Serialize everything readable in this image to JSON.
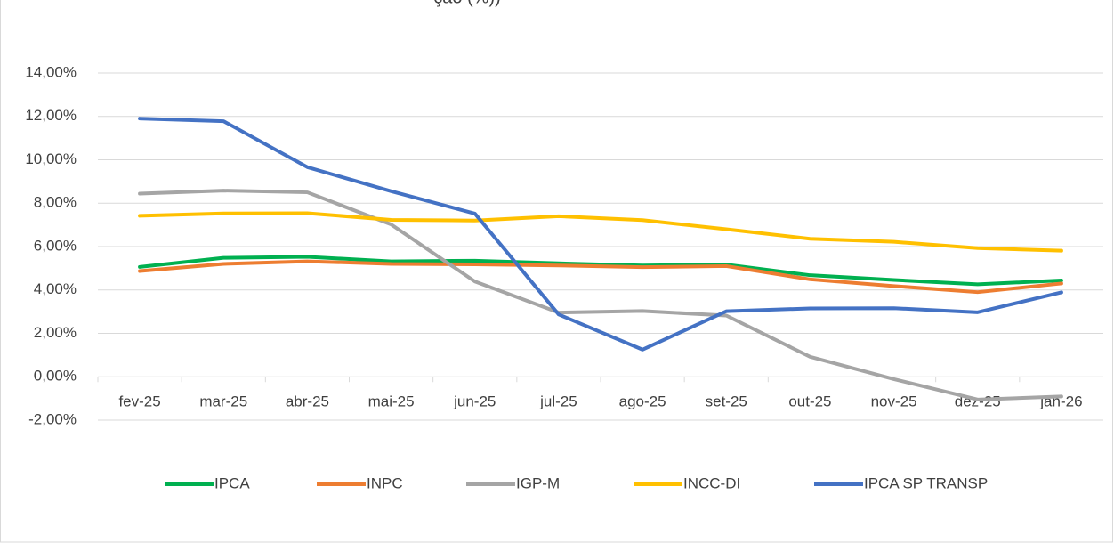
{
  "chart_data": {
    "type": "line",
    "title": "ção (%))",
    "categories": [
      "fev-25",
      "mar-25",
      "abr-25",
      "mai-25",
      "jun-25",
      "jul-25",
      "ago-25",
      "set-25",
      "out-25",
      "nov-25",
      "dez-25",
      "jan-26"
    ],
    "series": [
      {
        "name": "IPCA",
        "color": "#00b050",
        "values": [
          5.06,
          5.48,
          5.53,
          5.32,
          5.35,
          5.23,
          5.13,
          5.17,
          4.68,
          4.46,
          4.26,
          4.44
        ]
      },
      {
        "name": "INPC",
        "color": "#ed7d31",
        "values": [
          4.87,
          5.2,
          5.32,
          5.2,
          5.18,
          5.13,
          5.05,
          5.1,
          4.49,
          4.18,
          3.9,
          4.3
        ]
      },
      {
        "name": "IGP-M",
        "color": "#a5a5a5",
        "values": [
          8.44,
          8.58,
          8.5,
          7.02,
          4.39,
          2.96,
          3.03,
          2.82,
          0.92,
          -0.11,
          -1.05,
          -0.91
        ]
      },
      {
        "name": "INCC-DI",
        "color": "#ffc000",
        "values": [
          7.42,
          7.53,
          7.54,
          7.23,
          7.2,
          7.4,
          7.22,
          6.8,
          6.36,
          6.22,
          5.93,
          5.81
        ]
      },
      {
        "name": "IPCA SP TRANSP",
        "color": "#4472c4",
        "values": [
          11.9,
          11.78,
          9.66,
          8.55,
          7.52,
          2.87,
          1.25,
          3.02,
          3.15,
          3.16,
          2.97,
          3.89
        ]
      }
    ],
    "ylim": [
      -2,
      14
    ],
    "yticks": [
      {
        "value": -2,
        "label": "-2,00%"
      },
      {
        "value": 0,
        "label": "0,00%"
      },
      {
        "value": 2,
        "label": "2,00%"
      },
      {
        "value": 4,
        "label": "4,00%"
      },
      {
        "value": 6,
        "label": "6,00%"
      },
      {
        "value": 8,
        "label": "8,00%"
      },
      {
        "value": 10,
        "label": "10,00%"
      },
      {
        "value": 12,
        "label": "12,00%"
      },
      {
        "value": 14,
        "label": "14,00%"
      }
    ],
    "grid": true,
    "legend": "bottom"
  }
}
